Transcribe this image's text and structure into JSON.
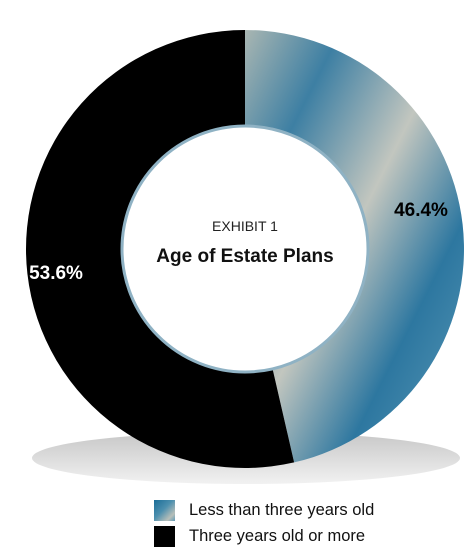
{
  "chart_data": {
    "type": "pie",
    "style": "donut",
    "title": "Age of Estate Plans",
    "subtitle": "EXHIBIT 1",
    "unit": "%",
    "slices": [
      {
        "label": "Less than three years old",
        "value": 46.4,
        "display": "46.4%",
        "color": "#3f82a6",
        "fill": "gradient"
      },
      {
        "label": "Three years old or more",
        "value": 53.6,
        "display": "53.6%",
        "color": "#000000",
        "fill": "solid"
      }
    ],
    "legend": {
      "placement": "bottom"
    }
  }
}
